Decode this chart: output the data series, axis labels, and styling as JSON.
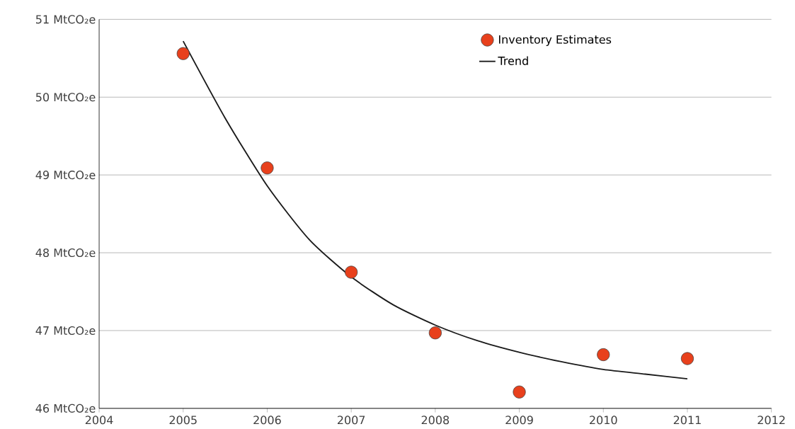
{
  "chart_data": {
    "type": "scatter",
    "x": [
      2005,
      2006,
      2007,
      2008,
      2009,
      2010,
      2011
    ],
    "series": [
      {
        "name": "Inventory Estimates",
        "color": "#e8401c",
        "values": [
          50.56,
          49.09,
          47.75,
          46.97,
          46.21,
          46.69,
          46.64
        ]
      },
      {
        "name": "Trend",
        "type": "line",
        "marker": "none",
        "color": "#1a1a1a",
        "x": [
          2005,
          2005.5,
          2006,
          2006.5,
          2007,
          2007.5,
          2008,
          2008.5,
          2009,
          2009.5,
          2010,
          2010.5,
          2011
        ],
        "values": [
          50.72,
          49.73,
          48.86,
          48.17,
          47.69,
          47.33,
          47.07,
          46.87,
          46.72,
          46.6,
          46.5,
          46.44,
          46.38
        ]
      }
    ],
    "xlim": [
      2004,
      2012
    ],
    "xticks": [
      2004,
      2005,
      2006,
      2007,
      2008,
      2009,
      2010,
      2011,
      2012
    ],
    "ylim": [
      46,
      51
    ],
    "yticks": [
      {
        "value": 46,
        "label": "46 MtCO₂e"
      },
      {
        "value": 47,
        "label": "47 MtCO₂e"
      },
      {
        "value": 48,
        "label": "48 MtCO₂e"
      },
      {
        "value": 49,
        "label": "49 MtCO₂e"
      },
      {
        "value": 50,
        "label": "50 MtCO₂e"
      },
      {
        "value": 51,
        "label": "51 MtCO₂e"
      }
    ],
    "grid": "y",
    "legend": "top right",
    "marker": "circle",
    "line_style": "solid"
  }
}
